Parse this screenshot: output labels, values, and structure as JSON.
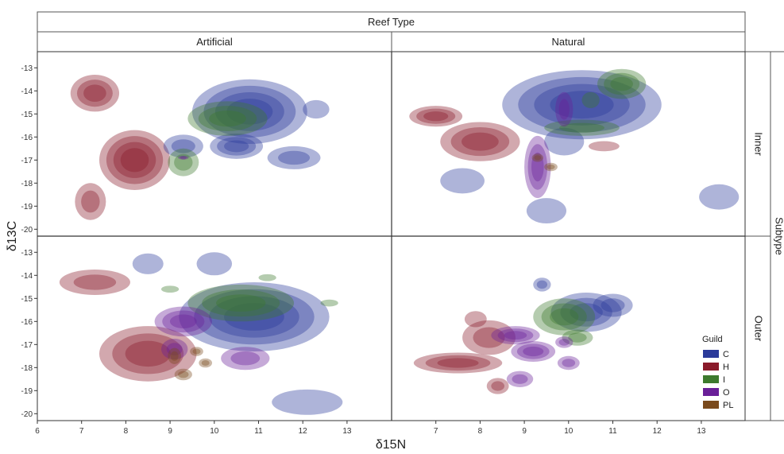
{
  "chart_data": {
    "type": "density-contour",
    "column_facet_title": "Reef Type",
    "row_facet_title": "Subtype",
    "columns": [
      "Artificial",
      "Natural"
    ],
    "rows": [
      "Inner",
      "Outer"
    ],
    "xlabel": "δ15N",
    "ylabel": "δ13C",
    "xlim": [
      6,
      14
    ],
    "ylim": [
      -20.3,
      -12.3
    ],
    "x_ticks": [
      6,
      7,
      8,
      9,
      10,
      11,
      12,
      13
    ],
    "y_ticks": [
      -13,
      -14,
      -15,
      -16,
      -17,
      -18,
      -19,
      -20
    ],
    "legend": {
      "title": "Guild",
      "position": "bottom-right",
      "items": [
        {
          "key": "C",
          "label": "C",
          "color": "#2b3a9a"
        },
        {
          "key": "H",
          "label": "H",
          "color": "#8a1a2a"
        },
        {
          "key": "I",
          "label": "I",
          "color": "#3d7a2e"
        },
        {
          "key": "O",
          "label": "O",
          "color": "#6a1f98"
        },
        {
          "key": "PL",
          "label": "PL",
          "color": "#7a4a1c"
        }
      ]
    },
    "panels": [
      {
        "column": "Artificial",
        "row": "Inner",
        "blobs": [
          {
            "guild": "H",
            "x": 7.3,
            "y": -14.1,
            "rx": 0.55,
            "ry": 0.8,
            "levels": 3
          },
          {
            "guild": "H",
            "x": 8.2,
            "y": -17.0,
            "rx": 0.8,
            "ry": 1.3,
            "levels": 4
          },
          {
            "guild": "H",
            "x": 7.2,
            "y": -18.8,
            "rx": 0.35,
            "ry": 0.8,
            "levels": 2
          },
          {
            "guild": "C",
            "x": 10.8,
            "y": -14.9,
            "rx": 1.3,
            "ry": 1.4,
            "levels": 4
          },
          {
            "guild": "C",
            "x": 10.5,
            "y": -16.4,
            "rx": 0.6,
            "ry": 0.55,
            "levels": 3
          },
          {
            "guild": "C",
            "x": 9.3,
            "y": -16.4,
            "rx": 0.45,
            "ry": 0.5,
            "levels": 2
          },
          {
            "guild": "C",
            "x": 11.8,
            "y": -16.9,
            "rx": 0.6,
            "ry": 0.5,
            "levels": 2
          },
          {
            "guild": "C",
            "x": 12.3,
            "y": -14.8,
            "rx": 0.3,
            "ry": 0.4,
            "levels": 1
          },
          {
            "guild": "I",
            "x": 10.3,
            "y": -15.2,
            "rx": 0.9,
            "ry": 0.75,
            "levels": 3
          },
          {
            "guild": "I",
            "x": 9.3,
            "y": -17.1,
            "rx": 0.35,
            "ry": 0.6,
            "levels": 2
          },
          {
            "guild": "O",
            "x": 9.3,
            "y": -16.9,
            "rx": 0.12,
            "ry": 0.08,
            "levels": 2
          }
        ]
      },
      {
        "column": "Natural",
        "row": "Inner",
        "blobs": [
          {
            "guild": "H",
            "x": 7.0,
            "y": -15.1,
            "rx": 0.6,
            "ry": 0.45,
            "levels": 3
          },
          {
            "guild": "H",
            "x": 8.0,
            "y": -16.2,
            "rx": 0.9,
            "ry": 0.85,
            "levels": 3
          },
          {
            "guild": "H",
            "x": 10.8,
            "y": -16.4,
            "rx": 0.35,
            "ry": 0.22,
            "levels": 1
          },
          {
            "guild": "C",
            "x": 10.3,
            "y": -14.6,
            "rx": 1.8,
            "ry": 1.5,
            "levels": 4
          },
          {
            "guild": "C",
            "x": 7.6,
            "y": -17.9,
            "rx": 0.5,
            "ry": 0.55,
            "levels": 1
          },
          {
            "guild": "C",
            "x": 9.5,
            "y": -19.2,
            "rx": 0.45,
            "ry": 0.55,
            "levels": 1
          },
          {
            "guild": "C",
            "x": 9.9,
            "y": -16.2,
            "rx": 0.45,
            "ry": 0.6,
            "levels": 1
          },
          {
            "guild": "C",
            "x": 13.4,
            "y": -18.6,
            "rx": 0.45,
            "ry": 0.55,
            "levels": 1
          },
          {
            "guild": "I",
            "x": 11.2,
            "y": -13.7,
            "rx": 0.55,
            "ry": 0.65,
            "levels": 3
          },
          {
            "guild": "I",
            "x": 10.3,
            "y": -15.6,
            "rx": 0.85,
            "ry": 0.35,
            "levels": 2
          },
          {
            "guild": "I",
            "x": 10.5,
            "y": -14.4,
            "rx": 0.2,
            "ry": 0.35,
            "levels": 1
          },
          {
            "guild": "O",
            "x": 9.3,
            "y": -17.3,
            "rx": 0.3,
            "ry": 1.35,
            "levels": 3
          },
          {
            "guild": "O",
            "x": 9.9,
            "y": -14.8,
            "rx": 0.2,
            "ry": 0.75,
            "levels": 2
          },
          {
            "guild": "PL",
            "x": 9.3,
            "y": -16.9,
            "rx": 0.13,
            "ry": 0.18,
            "levels": 2
          },
          {
            "guild": "PL",
            "x": 9.6,
            "y": -17.3,
            "rx": 0.15,
            "ry": 0.18,
            "levels": 2
          }
        ]
      },
      {
        "column": "Artificial",
        "row": "Outer",
        "blobs": [
          {
            "guild": "H",
            "x": 7.3,
            "y": -14.3,
            "rx": 0.8,
            "ry": 0.55,
            "levels": 2
          },
          {
            "guild": "H",
            "x": 8.5,
            "y": -17.4,
            "rx": 1.1,
            "ry": 1.2,
            "levels": 3
          },
          {
            "guild": "C",
            "x": 10.9,
            "y": -15.8,
            "rx": 1.7,
            "ry": 1.5,
            "levels": 4
          },
          {
            "guild": "C",
            "x": 8.5,
            "y": -13.5,
            "rx": 0.35,
            "ry": 0.45,
            "levels": 1
          },
          {
            "guild": "C",
            "x": 10.0,
            "y": -13.5,
            "rx": 0.4,
            "ry": 0.5,
            "levels": 1
          },
          {
            "guild": "C",
            "x": 12.1,
            "y": -19.5,
            "rx": 0.8,
            "ry": 0.55,
            "levels": 1
          },
          {
            "guild": "I",
            "x": 10.6,
            "y": -15.2,
            "rx": 1.2,
            "ry": 0.8,
            "levels": 3
          },
          {
            "guild": "I",
            "x": 9.0,
            "y": -14.6,
            "rx": 0.2,
            "ry": 0.15,
            "levels": 1
          },
          {
            "guild": "I",
            "x": 11.2,
            "y": -14.1,
            "rx": 0.2,
            "ry": 0.15,
            "levels": 1
          },
          {
            "guild": "I",
            "x": 12.6,
            "y": -15.2,
            "rx": 0.2,
            "ry": 0.15,
            "levels": 1
          },
          {
            "guild": "O",
            "x": 9.3,
            "y": -16.0,
            "rx": 0.65,
            "ry": 0.65,
            "levels": 3
          },
          {
            "guild": "O",
            "x": 10.7,
            "y": -17.6,
            "rx": 0.55,
            "ry": 0.5,
            "levels": 2
          },
          {
            "guild": "O",
            "x": 9.1,
            "y": -17.2,
            "rx": 0.3,
            "ry": 0.45,
            "levels": 2
          },
          {
            "guild": "PL",
            "x": 9.1,
            "y": -17.5,
            "rx": 0.15,
            "ry": 0.35,
            "levels": 2
          },
          {
            "guild": "PL",
            "x": 9.3,
            "y": -18.3,
            "rx": 0.2,
            "ry": 0.25,
            "levels": 2
          },
          {
            "guild": "PL",
            "x": 9.6,
            "y": -17.3,
            "rx": 0.15,
            "ry": 0.2,
            "levels": 2
          },
          {
            "guild": "PL",
            "x": 9.8,
            "y": -17.8,
            "rx": 0.15,
            "ry": 0.2,
            "levels": 2
          }
        ]
      },
      {
        "column": "Natural",
        "row": "Outer",
        "blobs": [
          {
            "guild": "H",
            "x": 7.5,
            "y": -17.8,
            "rx": 1.0,
            "ry": 0.45,
            "levels": 3
          },
          {
            "guild": "H",
            "x": 8.2,
            "y": -16.7,
            "rx": 0.6,
            "ry": 0.75,
            "levels": 2
          },
          {
            "guild": "H",
            "x": 7.9,
            "y": -15.9,
            "rx": 0.25,
            "ry": 0.35,
            "levels": 1
          },
          {
            "guild": "H",
            "x": 8.4,
            "y": -18.8,
            "rx": 0.25,
            "ry": 0.35,
            "levels": 2
          },
          {
            "guild": "C",
            "x": 10.4,
            "y": -15.6,
            "rx": 0.8,
            "ry": 0.85,
            "levels": 3
          },
          {
            "guild": "C",
            "x": 11.0,
            "y": -15.3,
            "rx": 0.45,
            "ry": 0.5,
            "levels": 2
          },
          {
            "guild": "C",
            "x": 9.4,
            "y": -14.4,
            "rx": 0.2,
            "ry": 0.3,
            "levels": 2
          },
          {
            "guild": "I",
            "x": 9.9,
            "y": -15.8,
            "rx": 0.7,
            "ry": 0.8,
            "levels": 3
          },
          {
            "guild": "I",
            "x": 10.2,
            "y": -16.7,
            "rx": 0.35,
            "ry": 0.35,
            "levels": 2
          },
          {
            "guild": "O",
            "x": 8.8,
            "y": -16.6,
            "rx": 0.55,
            "ry": 0.4,
            "levels": 3
          },
          {
            "guild": "O",
            "x": 9.2,
            "y": -17.3,
            "rx": 0.5,
            "ry": 0.45,
            "levels": 3
          },
          {
            "guild": "O",
            "x": 8.9,
            "y": -18.5,
            "rx": 0.3,
            "ry": 0.35,
            "levels": 2
          },
          {
            "guild": "O",
            "x": 10.0,
            "y": -17.8,
            "rx": 0.25,
            "ry": 0.3,
            "levels": 2
          },
          {
            "guild": "O",
            "x": 9.9,
            "y": -16.9,
            "rx": 0.2,
            "ry": 0.25,
            "levels": 2
          }
        ]
      }
    ]
  }
}
